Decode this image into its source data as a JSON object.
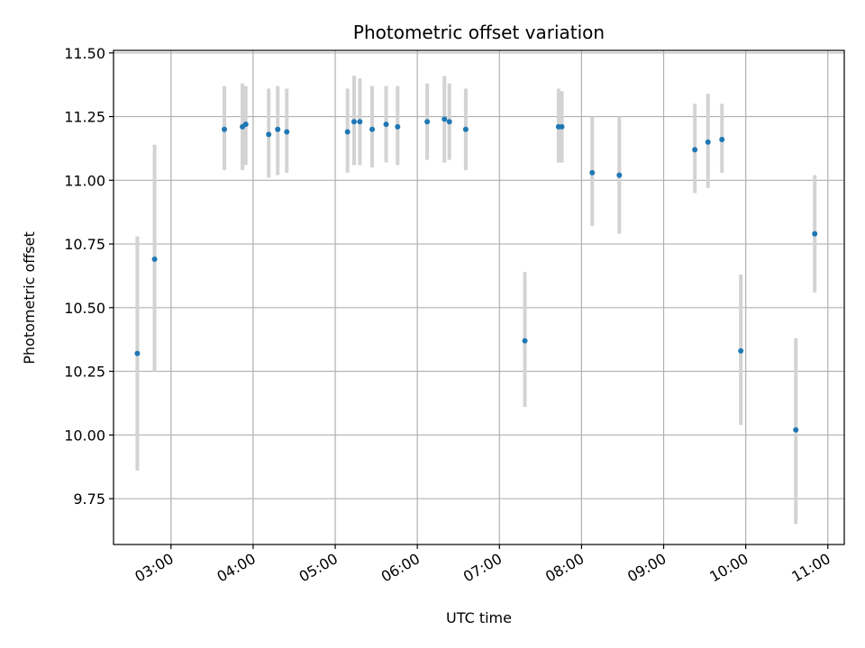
{
  "chart_data": {
    "type": "scatter",
    "title": "Photometric offset variation",
    "xlabel": "UTC time",
    "ylabel": "Photometric offset",
    "x_unit": "hour",
    "xlim": [
      2.3,
      11.2
    ],
    "ylim": [
      9.57,
      11.51
    ],
    "xticks": [
      {
        "value": 3,
        "label": "03:00"
      },
      {
        "value": 4,
        "label": "04:00"
      },
      {
        "value": 5,
        "label": "05:00"
      },
      {
        "value": 6,
        "label": "06:00"
      },
      {
        "value": 7,
        "label": "07:00"
      },
      {
        "value": 8,
        "label": "08:00"
      },
      {
        "value": 9,
        "label": "09:00"
      },
      {
        "value": 10,
        "label": "10:00"
      },
      {
        "value": 11,
        "label": "11:00"
      }
    ],
    "yticks": [
      {
        "value": 9.75,
        "label": "9.75"
      },
      {
        "value": 10.0,
        "label": "10.00"
      },
      {
        "value": 10.25,
        "label": "10.25"
      },
      {
        "value": 10.5,
        "label": "10.50"
      },
      {
        "value": 10.75,
        "label": "10.75"
      },
      {
        "value": 11.0,
        "label": "11.00"
      },
      {
        "value": 11.25,
        "label": "11.25"
      },
      {
        "value": 11.5,
        "label": "11.50"
      }
    ],
    "grid": true,
    "marker_color": "#1f77b4",
    "errorbar_color": "#d3d3d3",
    "points": [
      {
        "x": 2.59,
        "y": 10.32,
        "err_low": 9.86,
        "err_high": 10.78
      },
      {
        "x": 2.8,
        "y": 10.69,
        "err_low": 10.25,
        "err_high": 11.14
      },
      {
        "x": 3.65,
        "y": 11.2,
        "err_low": 11.04,
        "err_high": 11.37
      },
      {
        "x": 3.87,
        "y": 11.21,
        "err_low": 11.04,
        "err_high": 11.38
      },
      {
        "x": 3.91,
        "y": 11.22,
        "err_low": 11.06,
        "err_high": 11.37
      },
      {
        "x": 4.19,
        "y": 11.18,
        "err_low": 11.01,
        "err_high": 11.36
      },
      {
        "x": 4.3,
        "y": 11.2,
        "err_low": 11.02,
        "err_high": 11.37
      },
      {
        "x": 4.41,
        "y": 11.19,
        "err_low": 11.03,
        "err_high": 11.36
      },
      {
        "x": 5.15,
        "y": 11.19,
        "err_low": 11.03,
        "err_high": 11.36
      },
      {
        "x": 5.23,
        "y": 11.23,
        "err_low": 11.06,
        "err_high": 11.41
      },
      {
        "x": 5.3,
        "y": 11.23,
        "err_low": 11.06,
        "err_high": 11.4
      },
      {
        "x": 5.45,
        "y": 11.2,
        "err_low": 11.05,
        "err_high": 11.37
      },
      {
        "x": 5.62,
        "y": 11.22,
        "err_low": 11.07,
        "err_high": 11.37
      },
      {
        "x": 5.76,
        "y": 11.21,
        "err_low": 11.06,
        "err_high": 11.37
      },
      {
        "x": 6.12,
        "y": 11.23,
        "err_low": 11.08,
        "err_high": 11.38
      },
      {
        "x": 6.33,
        "y": 11.24,
        "err_low": 11.07,
        "err_high": 11.41
      },
      {
        "x": 6.39,
        "y": 11.23,
        "err_low": 11.08,
        "err_high": 11.38
      },
      {
        "x": 6.59,
        "y": 11.2,
        "err_low": 11.04,
        "err_high": 11.36
      },
      {
        "x": 7.31,
        "y": 10.37,
        "err_low": 10.11,
        "err_high": 10.64
      },
      {
        "x": 7.72,
        "y": 11.21,
        "err_low": 11.07,
        "err_high": 11.36
      },
      {
        "x": 7.76,
        "y": 11.21,
        "err_low": 11.07,
        "err_high": 11.35
      },
      {
        "x": 8.13,
        "y": 11.03,
        "err_low": 10.82,
        "err_high": 11.25
      },
      {
        "x": 8.46,
        "y": 11.02,
        "err_low": 10.79,
        "err_high": 11.25
      },
      {
        "x": 9.38,
        "y": 11.12,
        "err_low": 10.95,
        "err_high": 11.3
      },
      {
        "x": 9.54,
        "y": 11.15,
        "err_low": 10.97,
        "err_high": 11.34
      },
      {
        "x": 9.71,
        "y": 11.16,
        "err_low": 11.03,
        "err_high": 11.3
      },
      {
        "x": 9.94,
        "y": 10.33,
        "err_low": 10.04,
        "err_high": 10.63
      },
      {
        "x": 10.61,
        "y": 10.02,
        "err_low": 9.65,
        "err_high": 10.38
      },
      {
        "x": 10.84,
        "y": 10.79,
        "err_low": 10.56,
        "err_high": 11.02
      }
    ]
  }
}
